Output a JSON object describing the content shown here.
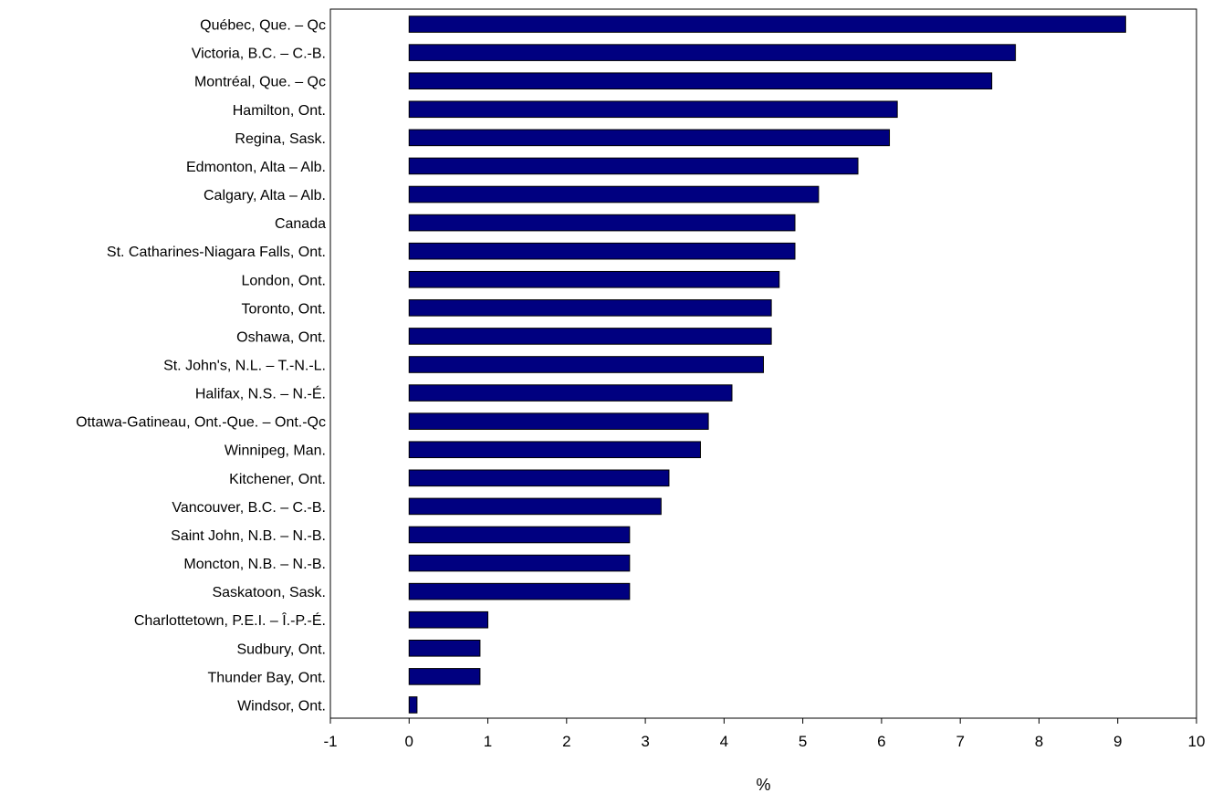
{
  "chart_data": {
    "type": "bar",
    "orientation": "horizontal",
    "categories": [
      "Québec, Que. – Qc",
      "Victoria, B.C. – C.-B.",
      "Montréal, Que. – Qc",
      "Hamilton, Ont.",
      "Regina, Sask.",
      "Edmonton, Alta – Alb.",
      "Calgary, Alta – Alb.",
      "Canada",
      "St. Catharines-Niagara Falls, Ont.",
      "London, Ont.",
      "Toronto, Ont.",
      "Oshawa, Ont.",
      "St. John's, N.L. – T.-N.-L.",
      "Halifax, N.S. – N.-É.",
      "Ottawa-Gatineau, Ont.-Que. – Ont.-Qc",
      "Winnipeg, Man.",
      "Kitchener, Ont.",
      "Vancouver, B.C. – C.-B.",
      "Saint John, N.B. – N.-B.",
      "Moncton, N.B.  – N.-B.",
      "Saskatoon, Sask.",
      "Charlottetown, P.E.I. – Î.-P.-É.",
      "Sudbury, Ont.",
      "Thunder Bay, Ont.",
      "Windsor, Ont."
    ],
    "values": [
      9.1,
      7.7,
      7.4,
      6.2,
      6.1,
      5.7,
      5.2,
      4.9,
      4.9,
      4.7,
      4.6,
      4.6,
      4.5,
      4.1,
      3.8,
      3.7,
      3.3,
      3.2,
      2.8,
      2.8,
      2.8,
      1.0,
      0.9,
      0.9,
      0.1
    ],
    "title": "",
    "xlabel": "%",
    "ylabel": "",
    "xlim": [
      -1,
      10
    ],
    "xticks": [
      "-1",
      "0",
      "1",
      "2",
      "3",
      "4",
      "5",
      "6",
      "7",
      "8",
      "9",
      "10"
    ],
    "grid": false,
    "legend": "none",
    "bar_color": "#000080",
    "bar_edge_color": "#000000"
  }
}
